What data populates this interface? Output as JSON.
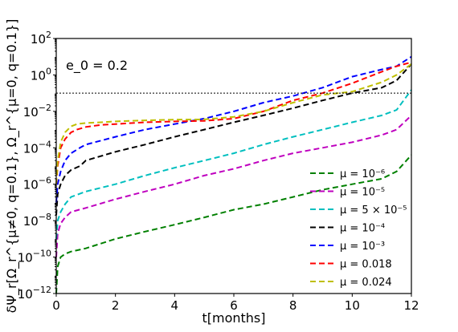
{
  "chart_data": {
    "type": "line",
    "annotation": "e_0 = 0.2",
    "xlabel": "t[months]",
    "ylabel": "δΨ_r[Ω_r^{μ≠0, q=0.1}, Ω_r^{μ=0, q=0.1}]",
    "xlim": [
      0,
      12
    ],
    "ylim": [
      1e-12,
      100
    ],
    "yscale": "log",
    "grid": false,
    "legend_position": "lower-right",
    "x_ticks": [
      "0",
      "2",
      "4",
      "6",
      "8",
      "10",
      "12"
    ],
    "y_ticks": [
      {
        "base": "10",
        "exp": "2"
      },
      {
        "base": "10",
        "exp": "0"
      },
      {
        "base": "10",
        "exp": "−2"
      },
      {
        "base": "10",
        "exp": "−4"
      },
      {
        "base": "10",
        "exp": "−6"
      },
      {
        "base": "10",
        "exp": "−8"
      },
      {
        "base": "10",
        "exp": "−10"
      },
      {
        "base": "10",
        "exp": "−12"
      }
    ],
    "reference_line": {
      "y": 0.1
    },
    "series": [
      {
        "name": "μ = 10⁻⁶",
        "color": "#008000",
        "x": [
          0,
          0.05,
          0.15,
          0.3,
          0.5,
          1,
          2,
          3,
          4,
          5,
          6,
          7,
          8,
          9,
          10,
          11,
          11.5,
          12
        ],
        "y": [
          1e-12,
          3e-11,
          1e-10,
          1.5e-10,
          2e-10,
          3e-10,
          1e-09,
          2.5e-09,
          6e-09,
          1.5e-08,
          4e-08,
          8e-08,
          2e-07,
          5e-07,
          1e-06,
          2e-06,
          5e-06,
          4e-05
        ]
      },
      {
        "name": "μ = 10⁻⁵",
        "color": "#bf00bf",
        "x": [
          0,
          0.05,
          0.15,
          0.3,
          0.5,
          1,
          2,
          3,
          4,
          5,
          6,
          7,
          8,
          9,
          10,
          11,
          11.5,
          12
        ],
        "y": [
          1e-10,
          2e-09,
          7e-09,
          1.5e-08,
          3e-08,
          5e-08,
          1.5e-07,
          4e-07,
          1e-06,
          3e-06,
          7e-06,
          2e-05,
          5e-05,
          0.0001,
          0.0002,
          0.0005,
          0.001,
          0.006
        ]
      },
      {
        "name": "μ = 5 × 10⁻⁵",
        "color": "#00bfbf",
        "x": [
          0,
          0.05,
          0.15,
          0.3,
          0.5,
          1,
          2,
          3,
          4,
          5,
          6,
          7,
          8,
          9,
          10,
          11,
          11.5,
          12
        ],
        "y": [
          1e-09,
          1e-08,
          3e-08,
          8e-08,
          2e-07,
          4e-07,
          1e-06,
          3e-06,
          8e-06,
          2e-05,
          5e-05,
          0.00015,
          0.0004,
          0.001,
          0.0025,
          0.006,
          0.012,
          0.15
        ]
      },
      {
        "name": "μ = 10⁻⁴",
        "color": "#000000",
        "x": [
          0,
          0.05,
          0.15,
          0.3,
          0.5,
          0.8,
          1,
          2,
          3,
          4,
          5,
          6,
          7,
          8,
          9,
          10,
          11,
          11.5,
          12
        ],
        "y": [
          2e-08,
          3e-07,
          1e-06,
          3e-06,
          6e-06,
          1e-05,
          2e-05,
          6e-05,
          0.00015,
          0.0004,
          0.001,
          0.0025,
          0.006,
          0.015,
          0.04,
          0.1,
          0.2,
          0.5,
          4
        ]
      },
      {
        "name": "μ = 10⁻³",
        "color": "#0000ff",
        "x": [
          0,
          0.05,
          0.15,
          0.3,
          0.5,
          0.8,
          1,
          2,
          3,
          4,
          5,
          6,
          7,
          8,
          9,
          10,
          11,
          11.5,
          12
        ],
        "y": [
          1e-07,
          1e-06,
          5e-06,
          2e-05,
          5e-05,
          0.0001,
          0.00015,
          0.0004,
          0.001,
          0.002,
          0.004,
          0.01,
          0.03,
          0.07,
          0.2,
          0.8,
          2,
          3,
          10
        ]
      },
      {
        "name": "μ = 0.018",
        "color": "#ff0000",
        "x": [
          0,
          0.05,
          0.15,
          0.3,
          0.5,
          0.7,
          1,
          1.5,
          2,
          3,
          4,
          5,
          6,
          7,
          8,
          9,
          10,
          11,
          11.5,
          12
        ],
        "y": [
          1e-06,
          1e-05,
          0.0001,
          0.0003,
          0.0007,
          0.001,
          0.0014,
          0.0018,
          0.002,
          0.0025,
          0.0028,
          0.003,
          0.004,
          0.01,
          0.04,
          0.1,
          0.35,
          1.5,
          3,
          5
        ]
      },
      {
        "name": "μ = 0.024",
        "color": "#bfbf00",
        "x": [
          0,
          0.05,
          0.15,
          0.3,
          0.5,
          0.7,
          1,
          1.5,
          2,
          3,
          4,
          5,
          6,
          7,
          8,
          9,
          10,
          11,
          11.5,
          12
        ],
        "y": [
          1e-06,
          2e-05,
          0.0002,
          0.0007,
          0.0015,
          0.002,
          0.0023,
          0.0025,
          0.0028,
          0.0032,
          0.0035,
          0.0036,
          0.005,
          0.01,
          0.03,
          0.08,
          0.12,
          0.4,
          1,
          4
        ]
      }
    ]
  }
}
